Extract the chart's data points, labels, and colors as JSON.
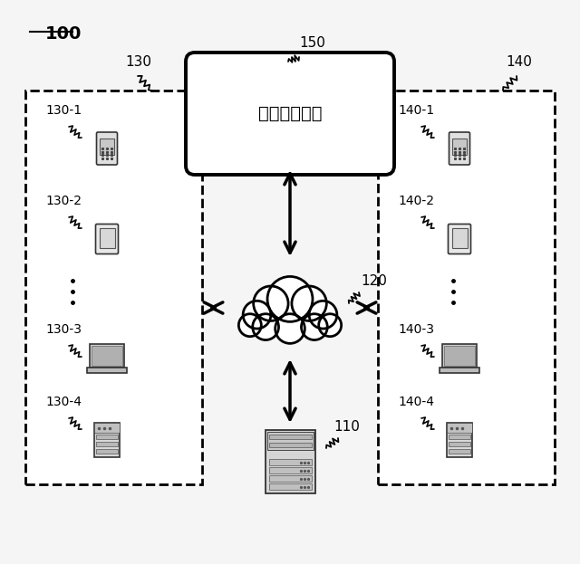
{
  "bg_color": "#f5f5f5",
  "label_100": "100",
  "label_130": "130",
  "label_140": "140",
  "label_150": "150",
  "label_120": "120",
  "label_110": "110",
  "db_text": "データベース",
  "left_items": [
    {
      "label": "130-1",
      "type": "mobile"
    },
    {
      "label": "130-2",
      "type": "tablet"
    },
    {
      "label": "130-3",
      "type": "laptop"
    },
    {
      "label": "130-4",
      "type": "server_tower"
    }
  ],
  "right_items": [
    {
      "label": "140-1",
      "type": "mobile"
    },
    {
      "label": "140-2",
      "type": "tablet"
    },
    {
      "label": "140-3",
      "type": "laptop"
    },
    {
      "label": "140-4",
      "type": "server_tower"
    }
  ]
}
